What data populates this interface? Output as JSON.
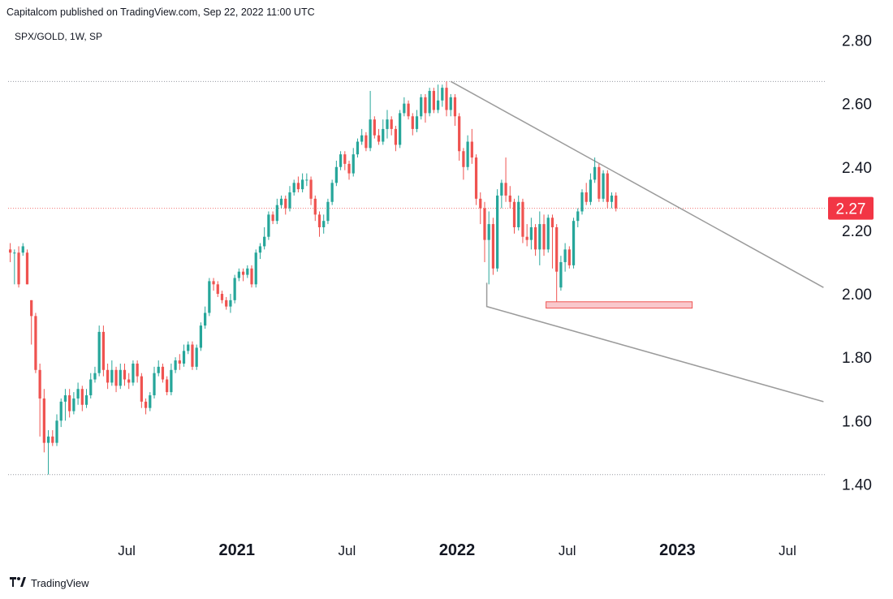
{
  "header": {
    "published": "Capitalcom published on TradingView.com, Sep 22, 2022 11:00 UTC",
    "symbol": "SPX/GOLD, 1W, SP"
  },
  "footer": {
    "brand": "TradingView",
    "logo": "tradingview-logo-icon"
  },
  "colors": {
    "up": "#26a69a",
    "down": "#ef5350",
    "trend": "#9b9b9b",
    "badge": "#f23645",
    "zone_fill": "#f9c8cc",
    "zone_stroke": "#ef5350"
  },
  "chart_data": {
    "type": "candlestick",
    "title": "SPX/GOLD, 1W, SP",
    "ylim": [
      1.25,
      2.85
    ],
    "y_ticks": [
      {
        "value": 2.8,
        "label": "2.80"
      },
      {
        "value": 2.6,
        "label": "2.60"
      },
      {
        "value": 2.4,
        "label": "2.40"
      },
      {
        "value": 2.2,
        "label": "2.20"
      },
      {
        "value": 2.0,
        "label": "2.00"
      },
      {
        "value": 1.8,
        "label": "1.80"
      },
      {
        "value": 1.6,
        "label": "1.60"
      },
      {
        "value": 1.4,
        "label": "1.40"
      }
    ],
    "x_ticks": [
      {
        "week": 28,
        "label": "Jul",
        "bold": false
      },
      {
        "week": 54,
        "label": "2021",
        "bold": true
      },
      {
        "week": 80,
        "label": "Jul",
        "bold": false
      },
      {
        "week": 106,
        "label": "2022",
        "bold": true
      },
      {
        "week": 132,
        "label": "Jul",
        "bold": false
      },
      {
        "week": 158,
        "label": "2023",
        "bold": true
      },
      {
        "week": 184,
        "label": "Jul",
        "bold": false
      }
    ],
    "week_range": [
      0,
      193
    ],
    "last_price": {
      "value": 2.27,
      "label": "2.27"
    },
    "horizontal_lines": [
      2.67,
      1.43
    ],
    "trendlines": [
      {
        "name": "upper-trendline",
        "from": [
          104.5,
          2.67
        ],
        "to": [
          192.5,
          2.02
        ]
      },
      {
        "name": "lower-trendline",
        "from": [
          113,
          2.035
        ],
        "to": [
          113,
          1.96
        ],
        "to2": [
          192.5,
          1.66
        ]
      }
    ],
    "support_zone": {
      "week_start": 127,
      "week_end": 161.5,
      "low": 1.955,
      "high": 1.975
    },
    "candles": [
      [
        2.14,
        2.13,
        2.16,
        2.1
      ],
      [
        2.13,
        2.13,
        2.14,
        2.03
      ],
      [
        2.13,
        2.03,
        2.15,
        2.02
      ],
      [
        2.13,
        2.15,
        2.16,
        2.12
      ],
      [
        2.13,
        2.03,
        2.14,
        2.03
      ],
      [
        1.98,
        1.93,
        1.98,
        1.84
      ],
      [
        1.93,
        1.76,
        1.94,
        1.75
      ],
      [
        1.76,
        1.67,
        1.78,
        1.55
      ],
      [
        1.67,
        1.53,
        1.7,
        1.5
      ],
      [
        1.53,
        1.55,
        1.57,
        1.43
      ],
      [
        1.55,
        1.53,
        1.57,
        1.52
      ],
      [
        1.53,
        1.6,
        1.62,
        1.52
      ],
      [
        1.6,
        1.66,
        1.67,
        1.58
      ],
      [
        1.66,
        1.68,
        1.7,
        1.6
      ],
      [
        1.68,
        1.63,
        1.7,
        1.61
      ],
      [
        1.63,
        1.67,
        1.69,
        1.62
      ],
      [
        1.67,
        1.7,
        1.72,
        1.65
      ],
      [
        1.7,
        1.65,
        1.71,
        1.63
      ],
      [
        1.65,
        1.68,
        1.7,
        1.64
      ],
      [
        1.68,
        1.73,
        1.75,
        1.67
      ],
      [
        1.73,
        1.75,
        1.77,
        1.72
      ],
      [
        1.75,
        1.88,
        1.9,
        1.74
      ],
      [
        1.88,
        1.76,
        1.9,
        1.74
      ],
      [
        1.76,
        1.72,
        1.78,
        1.7
      ],
      [
        1.72,
        1.76,
        1.79,
        1.71
      ],
      [
        1.76,
        1.71,
        1.77,
        1.69
      ],
      [
        1.71,
        1.76,
        1.78,
        1.7
      ],
      [
        1.76,
        1.73,
        1.78,
        1.71
      ],
      [
        1.73,
        1.72,
        1.75,
        1.7
      ],
      [
        1.72,
        1.78,
        1.79,
        1.71
      ],
      [
        1.78,
        1.74,
        1.79,
        1.72
      ],
      [
        1.74,
        1.66,
        1.75,
        1.64
      ],
      [
        1.66,
        1.64,
        1.67,
        1.62
      ],
      [
        1.64,
        1.68,
        1.69,
        1.63
      ],
      [
        1.68,
        1.75,
        1.77,
        1.67
      ],
      [
        1.75,
        1.77,
        1.79,
        1.74
      ],
      [
        1.77,
        1.73,
        1.78,
        1.72
      ],
      [
        1.73,
        1.69,
        1.74,
        1.68
      ],
      [
        1.69,
        1.76,
        1.78,
        1.68
      ],
      [
        1.76,
        1.79,
        1.8,
        1.75
      ],
      [
        1.79,
        1.78,
        1.81,
        1.76
      ],
      [
        1.78,
        1.82,
        1.84,
        1.77
      ],
      [
        1.82,
        1.84,
        1.85,
        1.81
      ],
      [
        1.84,
        1.77,
        1.85,
        1.76
      ],
      [
        1.77,
        1.83,
        1.84,
        1.76
      ],
      [
        1.83,
        1.9,
        1.91,
        1.82
      ],
      [
        1.9,
        1.94,
        1.96,
        1.89
      ],
      [
        1.94,
        2.04,
        2.05,
        1.93
      ],
      [
        2.04,
        2.03,
        2.05,
        2.01
      ],
      [
        2.03,
        2.0,
        2.04,
        1.99
      ],
      [
        2.0,
        1.98,
        2.01,
        1.97
      ],
      [
        1.98,
        1.96,
        1.99,
        1.95
      ],
      [
        1.96,
        1.98,
        2.0,
        1.94
      ],
      [
        1.98,
        2.05,
        2.06,
        1.97
      ],
      [
        2.05,
        2.07,
        2.08,
        2.04
      ],
      [
        2.07,
        2.06,
        2.08,
        2.04
      ],
      [
        2.06,
        2.08,
        2.09,
        2.05
      ],
      [
        2.08,
        2.03,
        2.09,
        2.02
      ],
      [
        2.03,
        2.13,
        2.14,
        2.02
      ],
      [
        2.13,
        2.15,
        2.16,
        2.11
      ],
      [
        2.15,
        2.18,
        2.21,
        2.14
      ],
      [
        2.18,
        2.25,
        2.26,
        2.17
      ],
      [
        2.25,
        2.23,
        2.26,
        2.22
      ],
      [
        2.23,
        2.28,
        2.3,
        2.22
      ],
      [
        2.28,
        2.3,
        2.31,
        2.27
      ],
      [
        2.3,
        2.27,
        2.31,
        2.25
      ],
      [
        2.27,
        2.32,
        2.34,
        2.26
      ],
      [
        2.32,
        2.35,
        2.36,
        2.31
      ],
      [
        2.35,
        2.33,
        2.37,
        2.32
      ],
      [
        2.33,
        2.36,
        2.38,
        2.32
      ],
      [
        2.36,
        2.36,
        2.38,
        2.34
      ],
      [
        2.36,
        2.3,
        2.37,
        2.28
      ],
      [
        2.3,
        2.25,
        2.31,
        2.23
      ],
      [
        2.25,
        2.21,
        2.26,
        2.18
      ],
      [
        2.21,
        2.23,
        2.25,
        2.19
      ],
      [
        2.23,
        2.29,
        2.3,
        2.22
      ],
      [
        2.29,
        2.35,
        2.36,
        2.28
      ],
      [
        2.35,
        2.4,
        2.42,
        2.34
      ],
      [
        2.4,
        2.44,
        2.45,
        2.39
      ],
      [
        2.44,
        2.41,
        2.45,
        2.39
      ],
      [
        2.41,
        2.38,
        2.42,
        2.36
      ],
      [
        2.38,
        2.44,
        2.46,
        2.37
      ],
      [
        2.44,
        2.48,
        2.49,
        2.43
      ],
      [
        2.48,
        2.5,
        2.52,
        2.47
      ],
      [
        2.5,
        2.46,
        2.51,
        2.45
      ],
      [
        2.46,
        2.55,
        2.64,
        2.45
      ],
      [
        2.55,
        2.5,
        2.56,
        2.49
      ],
      [
        2.5,
        2.48,
        2.52,
        2.47
      ],
      [
        2.48,
        2.52,
        2.55,
        2.47
      ],
      [
        2.52,
        2.55,
        2.58,
        2.49
      ],
      [
        2.55,
        2.52,
        2.56,
        2.5
      ],
      [
        2.52,
        2.47,
        2.53,
        2.45
      ],
      [
        2.47,
        2.57,
        2.58,
        2.46
      ],
      [
        2.57,
        2.6,
        2.62,
        2.56
      ],
      [
        2.6,
        2.56,
        2.61,
        2.55
      ],
      [
        2.56,
        2.52,
        2.57,
        2.5
      ],
      [
        2.52,
        2.56,
        2.58,
        2.51
      ],
      [
        2.56,
        2.62,
        2.63,
        2.55
      ],
      [
        2.62,
        2.57,
        2.63,
        2.54
      ],
      [
        2.57,
        2.64,
        2.65,
        2.56
      ],
      [
        2.64,
        2.58,
        2.65,
        2.57
      ],
      [
        2.58,
        2.61,
        2.66,
        2.57
      ],
      [
        2.61,
        2.65,
        2.66,
        2.59
      ],
      [
        2.65,
        2.58,
        2.67,
        2.56
      ],
      [
        2.58,
        2.62,
        2.63,
        2.56
      ],
      [
        2.62,
        2.56,
        2.63,
        2.53
      ],
      [
        2.56,
        2.45,
        2.57,
        2.42
      ],
      [
        2.45,
        2.4,
        2.46,
        2.36
      ],
      [
        2.4,
        2.48,
        2.5,
        2.39
      ],
      [
        2.48,
        2.43,
        2.52,
        2.41
      ],
      [
        2.43,
        2.3,
        2.44,
        2.28
      ],
      [
        2.3,
        2.27,
        2.32,
        2.22
      ],
      [
        2.27,
        2.17,
        2.29,
        2.1
      ],
      [
        2.17,
        2.22,
        2.26,
        2.03
      ],
      [
        2.22,
        2.08,
        2.24,
        2.06
      ],
      [
        2.08,
        2.31,
        2.33,
        2.07
      ],
      [
        2.31,
        2.35,
        2.36,
        2.27
      ],
      [
        2.35,
        2.31,
        2.43,
        2.29
      ],
      [
        2.31,
        2.29,
        2.34,
        2.27
      ],
      [
        2.29,
        2.21,
        2.3,
        2.19
      ],
      [
        2.21,
        2.29,
        2.31,
        2.2
      ],
      [
        2.29,
        2.18,
        2.3,
        2.16
      ],
      [
        2.18,
        2.17,
        2.22,
        2.15
      ],
      [
        2.17,
        2.21,
        2.24,
        2.14
      ],
      [
        2.21,
        2.14,
        2.22,
        2.12
      ],
      [
        2.14,
        2.22,
        2.26,
        2.09
      ],
      [
        2.22,
        2.14,
        2.25,
        2.12
      ],
      [
        2.14,
        2.24,
        2.25,
        2.13
      ],
      [
        2.24,
        2.21,
        2.25,
        2.08
      ],
      [
        2.21,
        2.07,
        2.22,
        1.96
      ],
      [
        2.02,
        2.1,
        2.12,
        2.01
      ],
      [
        2.1,
        2.14,
        2.16,
        2.07
      ],
      [
        2.14,
        2.09,
        2.15,
        2.08
      ],
      [
        2.09,
        2.23,
        2.24,
        2.08
      ],
      [
        2.23,
        2.26,
        2.27,
        2.21
      ],
      [
        2.26,
        2.32,
        2.33,
        2.25
      ],
      [
        2.32,
        2.29,
        2.35,
        2.28
      ],
      [
        2.29,
        2.36,
        2.38,
        2.28
      ],
      [
        2.36,
        2.4,
        2.43,
        2.35
      ],
      [
        2.4,
        2.3,
        2.41,
        2.29
      ],
      [
        2.3,
        2.38,
        2.39,
        2.29
      ],
      [
        2.38,
        2.29,
        2.39,
        2.27
      ],
      [
        2.29,
        2.31,
        2.32,
        2.27
      ],
      [
        2.31,
        2.27,
        2.32,
        2.26
      ]
    ]
  }
}
